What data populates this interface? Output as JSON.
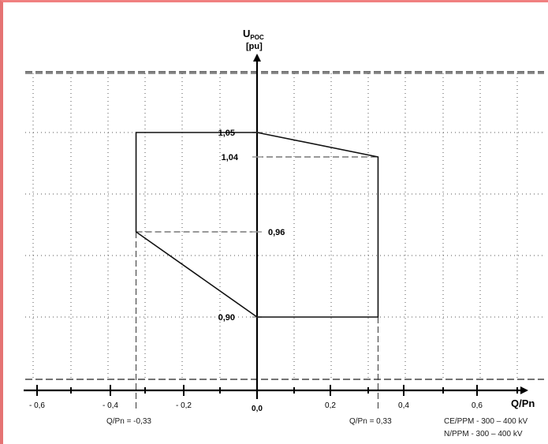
{
  "y_axis": {
    "title": "U",
    "title_sub": "POC",
    "unit": "[pu]"
  },
  "x_axis": {
    "title": "Q/Pn"
  },
  "x_ticks": [
    {
      "label": "- 0,6",
      "value": -0.6
    },
    {
      "label": "- 0,4",
      "value": -0.4
    },
    {
      "label": "- 0,2",
      "value": -0.2
    },
    {
      "label": "0,0",
      "value": 0.0
    },
    {
      "label": "0,2",
      "value": 0.2
    },
    {
      "label": "0,4",
      "value": 0.4
    },
    {
      "label": "0,6",
      "value": 0.6
    }
  ],
  "y_ticks": [
    {
      "label": "1,05",
      "value": 1.05
    },
    {
      "label": "1,04",
      "value": 1.04
    },
    {
      "label": "0,96",
      "value": 0.96
    },
    {
      "label": "0,90",
      "value": 0.9
    }
  ],
  "boundary_points": [
    {
      "q": -0.33,
      "u": 1.05
    },
    {
      "q": 0.0,
      "u": 1.05
    },
    {
      "q": 0.33,
      "u": 1.04
    },
    {
      "q": 0.33,
      "u": 0.9
    },
    {
      "q": 0.0,
      "u": 0.9
    },
    {
      "q": -0.33,
      "u": 0.96
    }
  ],
  "annotations": {
    "q_left": "Q/Pn = -0,33",
    "q_right": "Q/Pn = 0,33",
    "note1": "CE/PPM - 300 – 400 kV",
    "note2": "N/PPM  -  300 – 400 kV"
  }
}
